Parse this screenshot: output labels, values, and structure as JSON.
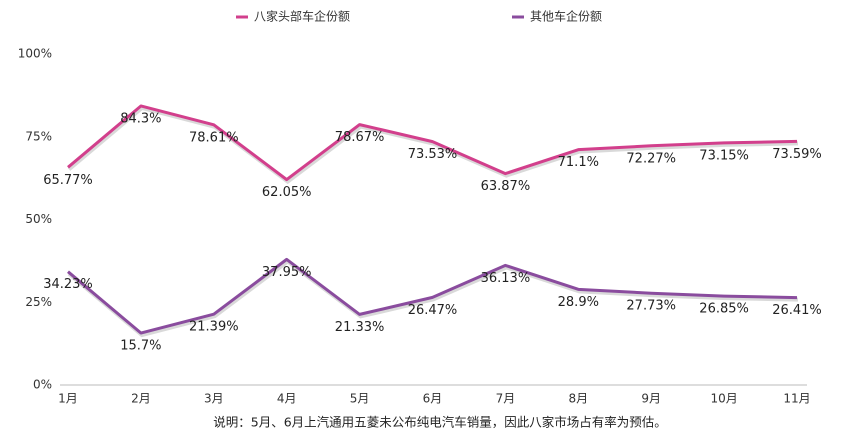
{
  "chart_data": {
    "type": "line",
    "categories": [
      "1月",
      "2月",
      "3月",
      "4月",
      "5月",
      "6月",
      "7月",
      "8月",
      "9月",
      "10月",
      "11月"
    ],
    "series": [
      {
        "name": "八家头部车企份额",
        "color": "#d23f8c",
        "values": [
          65.77,
          84.3,
          78.61,
          62.05,
          78.67,
          73.53,
          63.87,
          71.1,
          72.27,
          73.15,
          73.59
        ],
        "value_labels": [
          "65.77%",
          "84.3%",
          "78.61%",
          "62.05%",
          "78.67%",
          "73.53%",
          "63.87%",
          "71.1%",
          "72.27%",
          "73.15%",
          "73.59%"
        ]
      },
      {
        "name": "其他车企份额",
        "color": "#8a4c9e",
        "values": [
          34.23,
          15.7,
          21.39,
          37.95,
          21.33,
          26.47,
          36.13,
          28.9,
          27.73,
          26.85,
          26.41
        ],
        "value_labels": [
          "34.23%",
          "15.7%",
          "21.39%",
          "37.95%",
          "21.33%",
          "26.47%",
          "36.13%",
          "28.9%",
          "27.73%",
          "26.85%",
          "26.41%"
        ]
      }
    ],
    "ylim": [
      0,
      100
    ],
    "yticks": [
      {
        "value": 0,
        "label": "0%"
      },
      {
        "value": 25,
        "label": "25%"
      },
      {
        "value": 50,
        "label": "50%"
      },
      {
        "value": 75,
        "label": "75%"
      },
      {
        "value": 100,
        "label": "100%"
      }
    ],
    "grid": false,
    "legend": "top",
    "note": "说明：5月、6月上汽通用五菱未公布纯电汽车销量，因此八家市场占有率为预估。"
  }
}
